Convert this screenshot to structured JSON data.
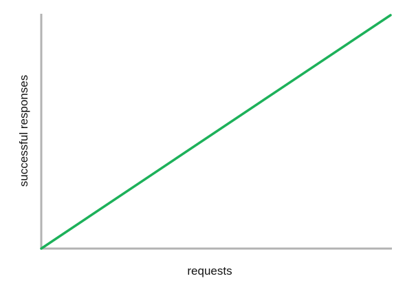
{
  "chart_data": {
    "type": "line",
    "xlabel": "requests",
    "ylabel": "successful responses",
    "grid": false,
    "legend": "none",
    "xlim": [
      0,
      1
    ],
    "ylim": [
      0,
      1
    ],
    "series": [
      {
        "x": [
          0,
          1
        ],
        "y": [
          0,
          1
        ],
        "color": "#1db15a"
      }
    ]
  },
  "colors": {
    "axis": "#b3b3b3",
    "line": "#1db15a",
    "text": "#111111"
  }
}
